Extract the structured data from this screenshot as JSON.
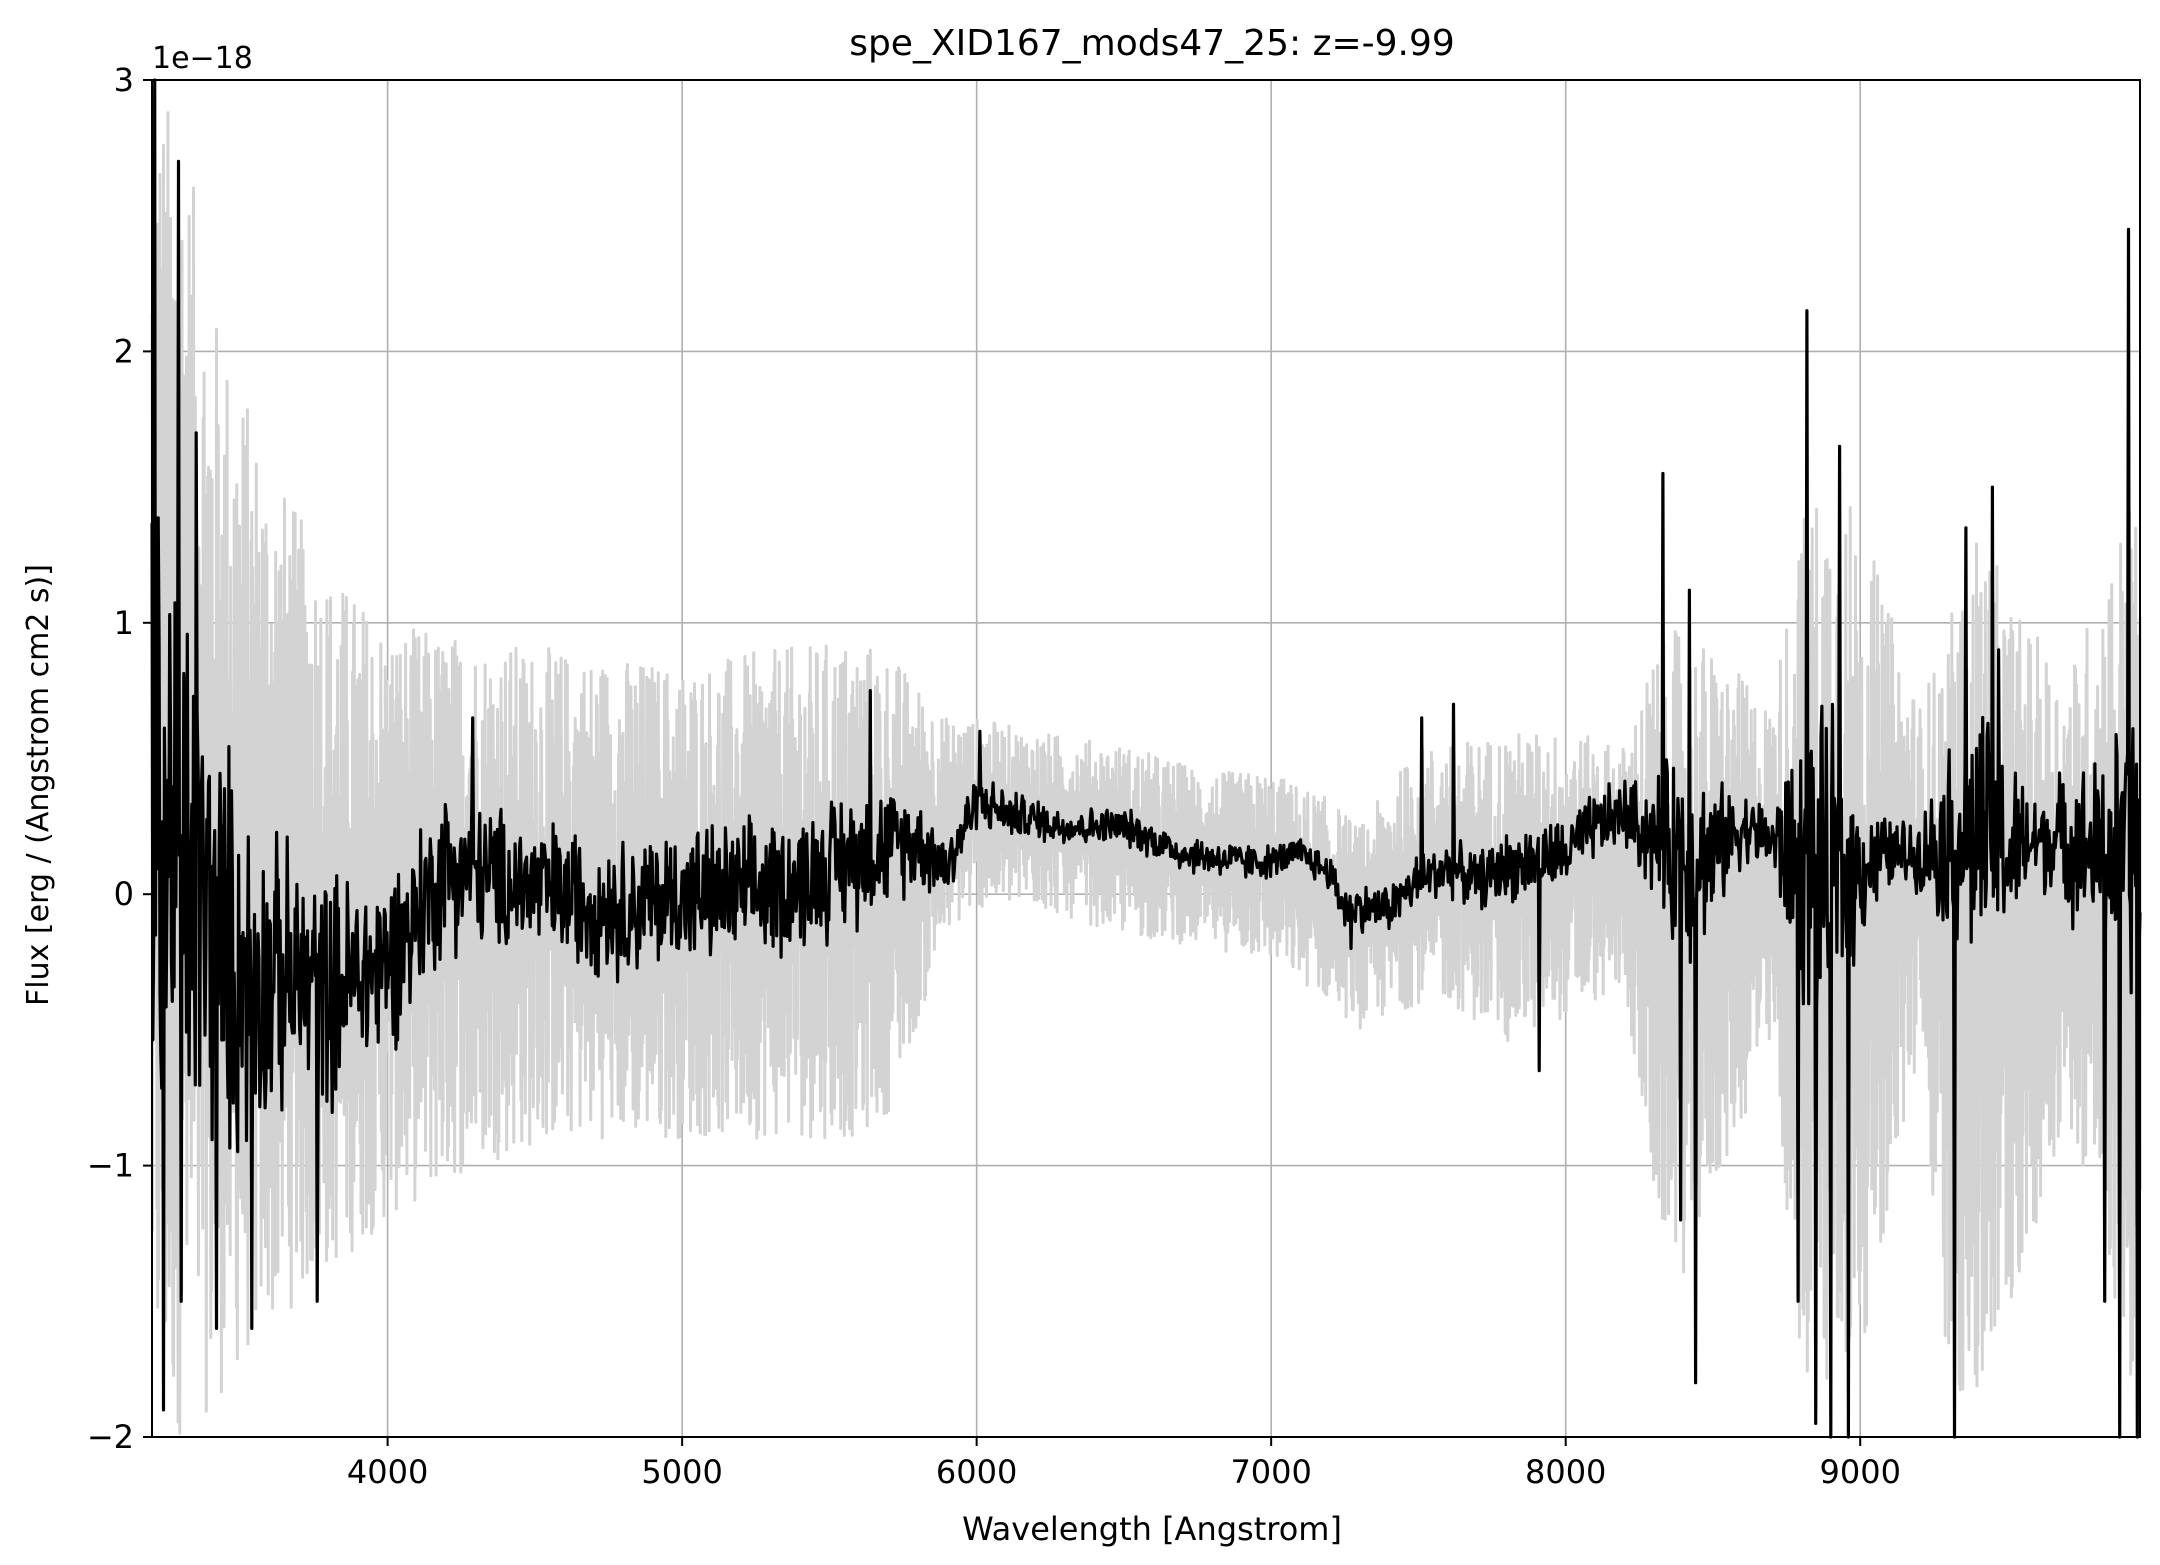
{
  "chart_data": {
    "type": "line",
    "title": "spe_XID167_mods47_25: z=-9.99",
    "xlabel": "Wavelength [Angstrom]",
    "ylabel": "Flux [erg / (Angstrom cm2 s)]",
    "y_offset_label": "1e−18",
    "xlim": [
      3200,
      9950
    ],
    "ylim": [
      -2,
      3
    ],
    "y_scale_factor": 1e-18,
    "grid": true,
    "x_ticks": [
      4000,
      5000,
      6000,
      7000,
      8000,
      9000
    ],
    "x_tick_labels": [
      "4000",
      "5000",
      "6000",
      "7000",
      "8000",
      "9000"
    ],
    "y_ticks": [
      -2,
      -1,
      0,
      1,
      2,
      3
    ],
    "y_tick_labels": [
      "−2",
      "−1",
      "0",
      "1",
      "2",
      "3"
    ],
    "series": [
      {
        "role": "uncertainty",
        "color": "#d3d3d3",
        "x": [
          3200,
          3300,
          3400,
          3600,
          3800,
          4000,
          4300,
          4600,
          5000,
          5300,
          5600,
          5700,
          5900,
          6000,
          6200,
          6500,
          6800,
          7000,
          7200,
          7300,
          7500,
          7600,
          7800,
          8000,
          8200,
          8300,
          8400,
          8500,
          8700,
          8800,
          8900,
          9000,
          9200,
          9300,
          9400,
          9500,
          9700,
          9800,
          9950
        ],
        "upper": [
          3.0,
          2.9,
          2.2,
          1.6,
          1.2,
          1.0,
          0.95,
          0.9,
          0.85,
          0.9,
          0.95,
          0.9,
          0.65,
          0.65,
          0.6,
          0.55,
          0.45,
          0.45,
          0.35,
          0.25,
          0.55,
          0.55,
          0.6,
          0.6,
          0.55,
          0.9,
          1.0,
          0.9,
          0.7,
          1.4,
          1.6,
          1.4,
          0.7,
          1.0,
          1.4,
          1.1,
          0.8,
          1.1,
          1.6
        ],
        "lower": [
          -2.0,
          -2.0,
          -1.9,
          -1.6,
          -1.4,
          -1.2,
          -1.0,
          -0.9,
          -0.9,
          -0.9,
          -0.9,
          -0.8,
          -0.15,
          -0.05,
          -0.05,
          -0.15,
          -0.2,
          -0.25,
          -0.4,
          -0.5,
          -0.4,
          -0.4,
          -0.55,
          -0.45,
          -0.35,
          -1.2,
          -1.4,
          -1.1,
          -0.6,
          -1.8,
          -2.0,
          -1.7,
          -0.6,
          -1.8,
          -2.0,
          -1.6,
          -0.8,
          -1.2,
          -2.0
        ]
      },
      {
        "role": "flux",
        "color": "#000000",
        "x": [
          3200,
          3300,
          3400,
          3500,
          3600,
          3800,
          4000,
          4200,
          4400,
          4600,
          4800,
          5000,
          5200,
          5400,
          5600,
          5800,
          5900,
          6000,
          6100,
          6300,
          6500,
          6700,
          6900,
          7000,
          7100,
          7200,
          7250,
          7300,
          7400,
          7500,
          7600,
          7700,
          7800,
          8000,
          8100,
          8200,
          8300,
          8400,
          8500,
          8600,
          8700,
          8800,
          8900,
          9000,
          9100,
          9200,
          9300,
          9400,
          9500,
          9600,
          9700,
          9800,
          9900,
          9950
        ],
        "y": [
          0.3,
          0.1,
          -0.1,
          -0.3,
          -0.3,
          -0.35,
          -0.25,
          0.1,
          0.05,
          0.0,
          -0.05,
          0.0,
          0.0,
          0.05,
          0.15,
          0.2,
          0.1,
          0.35,
          0.3,
          0.25,
          0.25,
          0.15,
          0.12,
          0.12,
          0.15,
          0.08,
          -0.05,
          -0.05,
          -0.05,
          0.05,
          0.1,
          0.05,
          0.1,
          0.15,
          0.25,
          0.3,
          0.2,
          0.15,
          0.15,
          0.25,
          0.2,
          0.1,
          0.05,
          0.1,
          0.15,
          0.15,
          0.2,
          0.2,
          0.15,
          0.2,
          0.2,
          0.15,
          0.15,
          0.2
        ],
        "amplitude": [
          1.5,
          1.3,
          1.0,
          0.8,
          0.6,
          0.5,
          0.4,
          0.35,
          0.3,
          0.3,
          0.3,
          0.3,
          0.3,
          0.3,
          0.3,
          0.2,
          0.15,
          0.12,
          0.1,
          0.08,
          0.08,
          0.08,
          0.08,
          0.07,
          0.07,
          0.08,
          0.1,
          0.1,
          0.1,
          0.12,
          0.12,
          0.12,
          0.15,
          0.15,
          0.15,
          0.15,
          0.25,
          0.5,
          0.3,
          0.15,
          0.15,
          0.6,
          0.7,
          0.3,
          0.15,
          0.15,
          0.4,
          0.6,
          0.4,
          0.2,
          0.3,
          0.4,
          0.6,
          0.8
        ],
        "features": [
          {
            "x": 3210,
            "y": 3.0
          },
          {
            "x": 3240,
            "y": -1.9
          },
          {
            "x": 3290,
            "y": 2.7
          },
          {
            "x": 3300,
            "y": -1.5
          },
          {
            "x": 3350,
            "y": 1.7
          },
          {
            "x": 3420,
            "y": -1.6
          },
          {
            "x": 3540,
            "y": -1.6
          },
          {
            "x": 3760,
            "y": -1.5
          },
          {
            "x": 4290,
            "y": 0.65
          },
          {
            "x": 5640,
            "y": 0.75
          },
          {
            "x": 6010,
            "y": 0.6
          },
          {
            "x": 7270,
            "y": -0.2
          },
          {
            "x": 7510,
            "y": 0.65
          },
          {
            "x": 7620,
            "y": 0.7
          },
          {
            "x": 7910,
            "y": -0.65
          },
          {
            "x": 8330,
            "y": 1.55
          },
          {
            "x": 8390,
            "y": -1.2
          },
          {
            "x": 8420,
            "y": 1.12
          },
          {
            "x": 8440,
            "y": -1.8
          },
          {
            "x": 8790,
            "y": -1.5
          },
          {
            "x": 8820,
            "y": 2.15
          },
          {
            "x": 8850,
            "y": -1.95
          },
          {
            "x": 8900,
            "y": -2.0
          },
          {
            "x": 8930,
            "y": 1.65
          },
          {
            "x": 8960,
            "y": -2.0
          },
          {
            "x": 9320,
            "y": -2.0
          },
          {
            "x": 9360,
            "y": 1.35
          },
          {
            "x": 9450,
            "y": 1.5
          },
          {
            "x": 9470,
            "y": 0.9
          },
          {
            "x": 9830,
            "y": -1.5
          },
          {
            "x": 9880,
            "y": -2.0
          },
          {
            "x": 9910,
            "y": 2.45
          },
          {
            "x": 9940,
            "y": -2.0
          }
        ]
      }
    ]
  }
}
